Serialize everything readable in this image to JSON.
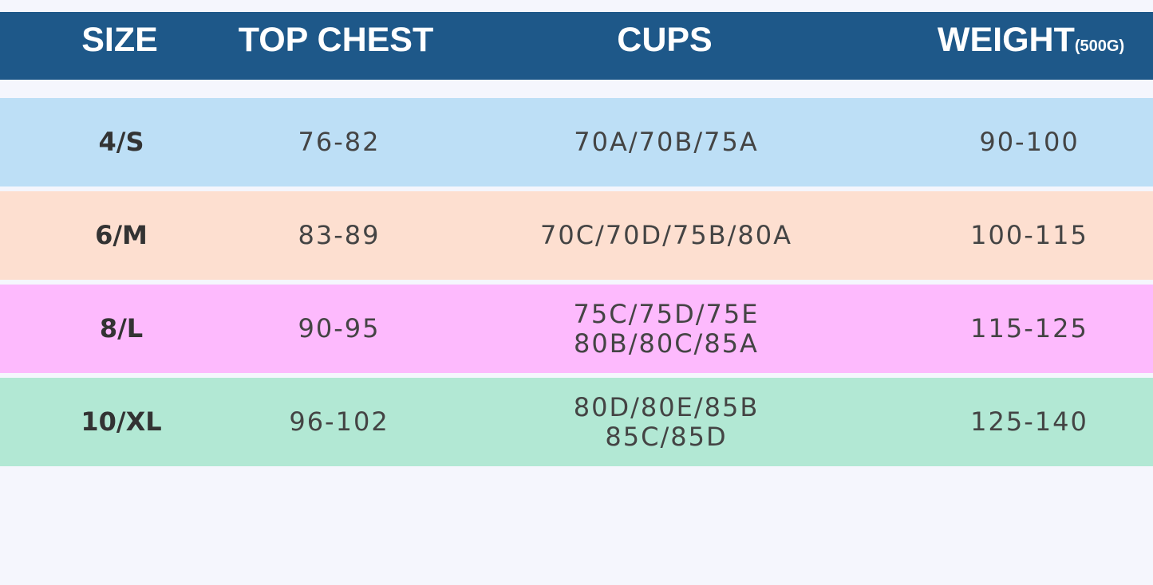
{
  "header": {
    "size": "SIZE",
    "top_chest": "TOP CHEST",
    "cups": "CUPS",
    "weight": "WEIGHT",
    "weight_unit": "(500G)"
  },
  "table": {
    "rows": [
      {
        "size": "4/S",
        "top_chest": "76-82",
        "cups": [
          "70A/70B/75A"
        ],
        "weight": "90-100"
      },
      {
        "size": "6/M",
        "top_chest": "83-89",
        "cups": [
          "70C/70D/75B/80A"
        ],
        "weight": "100-115"
      },
      {
        "size": "8/L",
        "top_chest": "90-95",
        "cups": [
          "75C/75D/75E",
          "80B/80C/85A"
        ],
        "weight": "115-125"
      },
      {
        "size": "10/XL",
        "top_chest": "96-102",
        "cups": [
          "80D/80E/85B",
          "85C/85D"
        ],
        "weight": "125-140"
      }
    ]
  }
}
